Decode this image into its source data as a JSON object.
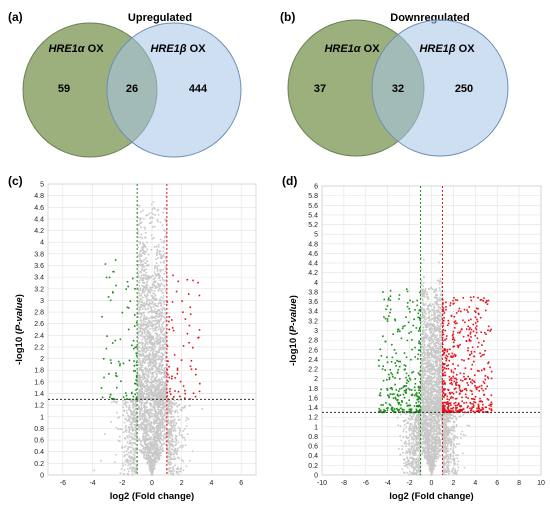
{
  "panels": {
    "a": "(a)",
    "b": "(b)",
    "c": "(c)",
    "d": "(d)"
  },
  "venn_a": {
    "title": "Upregulated",
    "left_label": {
      "prefix": "HRE1",
      "greek": "α",
      "suffix": " OX"
    },
    "right_label": {
      "prefix": "HRE1",
      "greek": "β",
      "suffix": " OX"
    },
    "left_only": "59",
    "overlap": "26",
    "right_only": "444"
  },
  "venn_b": {
    "title": "Downregulated",
    "left_label": {
      "prefix": "HRE1",
      "greek": "α",
      "suffix": " OX"
    },
    "right_label": {
      "prefix": "HRE1",
      "greek": "β",
      "suffix": " OX"
    },
    "left_only": "37",
    "overlap": "32",
    "right_only": "250"
  },
  "colors": {
    "venn_left": "#9bb07c",
    "venn_right": "#a8c5e8",
    "venn_overlap": "#6f9aa2",
    "up": "#e0141e",
    "down": "#1a8c1a",
    "ns": "#c8c8c8",
    "threshold": "#333333"
  },
  "chart_data": [
    {
      "type": "scatter",
      "title": "",
      "xlabel": "log2 (Fold change)",
      "ylabel": "-log10 (P-value)",
      "xlim": [
        -7,
        7
      ],
      "ylim": [
        0,
        5
      ],
      "xticks": [
        "-6",
        "-4",
        "-2",
        "0",
        "2",
        "4",
        "6"
      ],
      "yticks": [
        "0",
        "0.2",
        "0.4",
        "0.6",
        "0.8",
        "1",
        "1.2",
        "1.4",
        "1.6",
        "1.8",
        "2",
        "2.2",
        "2.4",
        "2.6",
        "2.8",
        "3",
        "3.2",
        "3.4",
        "3.6",
        "3.8",
        "4",
        "4.2",
        "4.4",
        "4.6",
        "4.8",
        "5"
      ],
      "thresholds": {
        "fc": [
          -1,
          1
        ],
        "p": 1.3
      },
      "grid": true,
      "seed": 7,
      "n_ns": 2600,
      "n_up": 70,
      "n_down": 85
    },
    {
      "type": "scatter",
      "title": "",
      "xlabel": "log2 (Fold change)",
      "ylabel": "-log10 (P-value)",
      "xlim": [
        -10,
        10
      ],
      "ylim": [
        0,
        6
      ],
      "xticks": [
        "-10",
        "-8",
        "-6",
        "-4",
        "-2",
        "0",
        "2",
        "4",
        "6",
        "8",
        "10"
      ],
      "yticks": [
        "0",
        "0.2",
        "0.4",
        "0.6",
        "0.8",
        "1",
        "1.2",
        "1.4",
        "1.6",
        "1.8",
        "2",
        "2.2",
        "2.4",
        "2.6",
        "2.8",
        "3",
        "3.2",
        "3.4",
        "3.6",
        "3.8",
        "4",
        "4.2",
        "4.4",
        "4.6",
        "4.8",
        "5",
        "5.2",
        "5.4",
        "5.6",
        "5.8",
        "6"
      ],
      "thresholds": {
        "fc": [
          -1,
          1
        ],
        "p": 1.3
      },
      "grid": true,
      "seed": 11,
      "n_ns": 2600,
      "n_up": 520,
      "n_down": 300
    }
  ]
}
